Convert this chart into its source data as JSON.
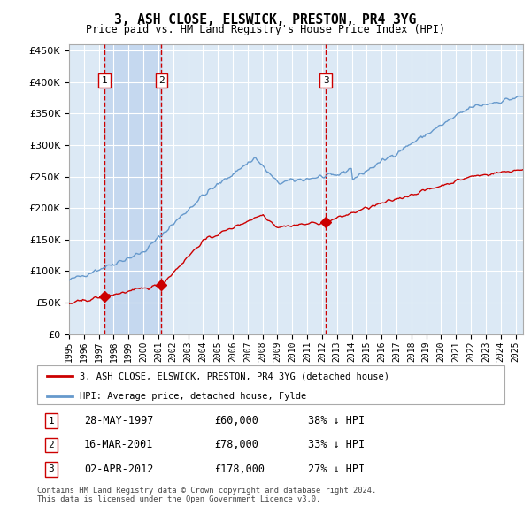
{
  "title": "3, ASH CLOSE, ELSWICK, PRESTON, PR4 3YG",
  "subtitle": "Price paid vs. HM Land Registry's House Price Index (HPI)",
  "legend_label_red": "3, ASH CLOSE, ELSWICK, PRESTON, PR4 3YG (detached house)",
  "legend_label_blue": "HPI: Average price, detached house, Fylde",
  "footnote": "Contains HM Land Registry data © Crown copyright and database right 2024.\nThis data is licensed under the Open Government Licence v3.0.",
  "transactions": [
    {
      "label": "1",
      "date": "28-MAY-1997",
      "price": 60000,
      "hpi_pct": "38% ↓ HPI"
    },
    {
      "label": "2",
      "date": "16-MAR-2001",
      "price": 78000,
      "hpi_pct": "33% ↓ HPI"
    },
    {
      "label": "3",
      "date": "02-APR-2012",
      "price": 178000,
      "hpi_pct": "27% ↓ HPI"
    }
  ],
  "transaction_dates_decimal": [
    1997.38,
    2001.21,
    2012.25
  ],
  "transaction_prices": [
    60000,
    78000,
    178000
  ],
  "ylim": [
    0,
    460000
  ],
  "yticks": [
    0,
    50000,
    100000,
    150000,
    200000,
    250000,
    300000,
    350000,
    400000,
    450000
  ],
  "start_year": 1995,
  "end_year": 2025,
  "background_color": "#ffffff",
  "plot_bg_color": "#dce9f5",
  "grid_color": "#ffffff",
  "red_color": "#cc0000",
  "blue_color": "#6699cc",
  "dashed_color": "#cc0000",
  "shade_color": "#c5d8ef"
}
